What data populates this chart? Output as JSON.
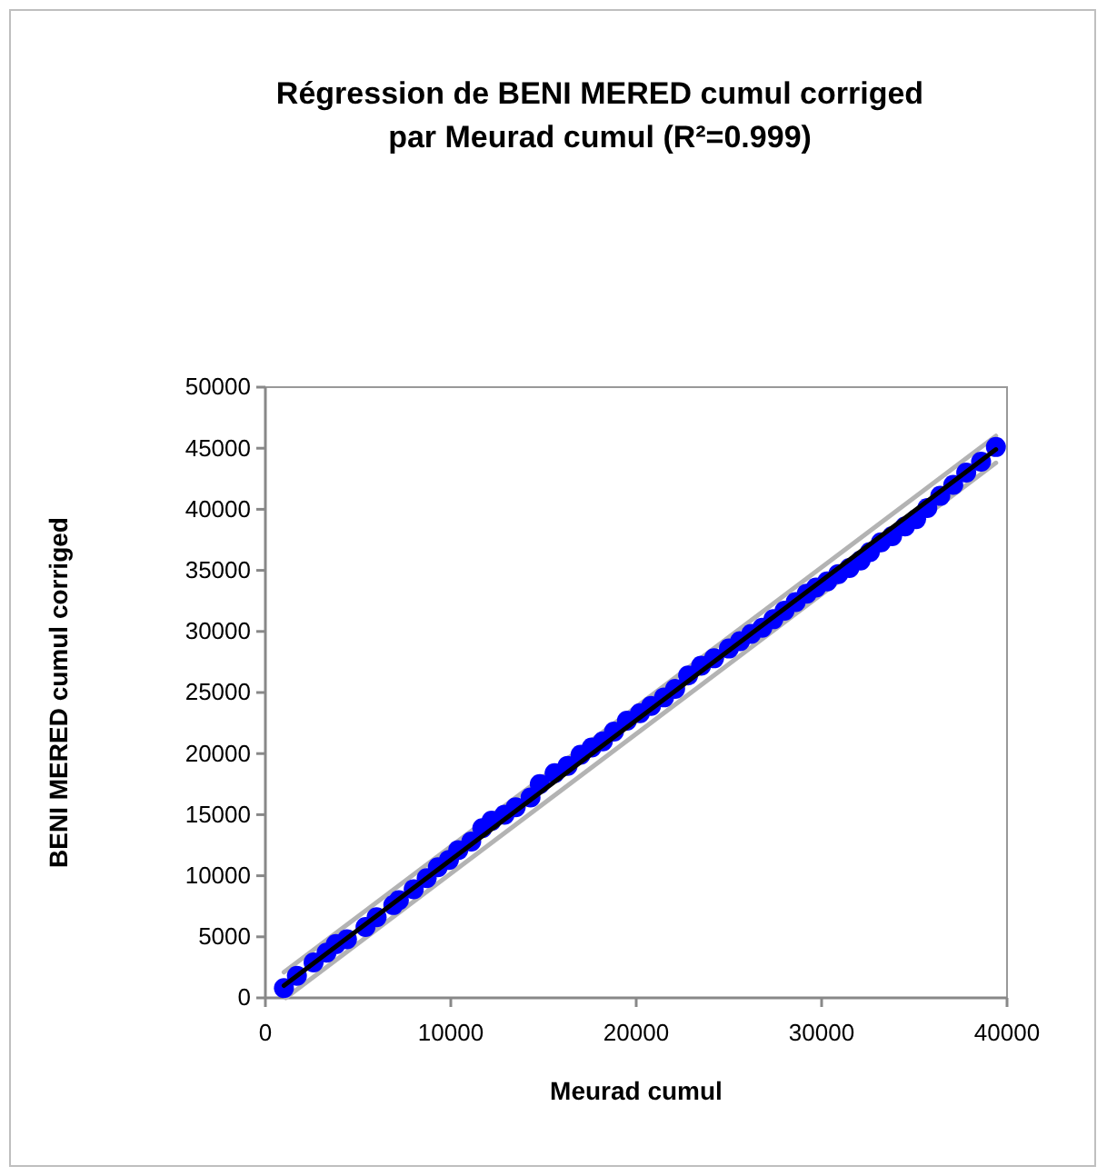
{
  "chart_data": {
    "type": "scatter",
    "title": "Régression de BENI MERED cumul corriged\npar Meurad cumul (R²=0.999)",
    "xlabel": "Meurad cumul",
    "ylabel": "BENI MERED cumul corriged",
    "xlim": [
      0,
      40000
    ],
    "ylim": [
      0,
      50000
    ],
    "xticks": [
      0,
      10000,
      20000,
      30000,
      40000
    ],
    "yticks": [
      0,
      5000,
      10000,
      15000,
      20000,
      25000,
      30000,
      35000,
      40000,
      45000,
      50000
    ],
    "grid": false,
    "series": [
      {
        "type": "line",
        "marker": "none",
        "color": "#b3b3b3",
        "x": [
          1000,
          39400
        ],
        "values": [
          2100,
          46000
        ]
      },
      {
        "type": "line",
        "marker": "none",
        "color": "#b3b3b3",
        "x": [
          1100,
          39400
        ],
        "values": [
          0,
          43800
        ]
      },
      {
        "marker": "circle",
        "color": "#0000ff",
        "x": [
          1000,
          1700,
          2600,
          3300,
          3800,
          4400,
          5400,
          6000,
          6900,
          7200,
          8000,
          8700,
          9300,
          9900,
          10400,
          11100,
          11700,
          12200,
          12900,
          13500,
          14300,
          14800,
          15600,
          16300,
          17000,
          17600,
          18200,
          18800,
          19500,
          20200,
          20800,
          21500,
          22100,
          22800,
          23500,
          24200,
          25000,
          25600,
          26200,
          26800,
          27400,
          28000,
          28600,
          29200,
          29700,
          30300,
          30900,
          31500,
          32100,
          32600,
          33200,
          33800,
          34500,
          35100,
          35700,
          36400,
          37100,
          37800,
          38600,
          39400
        ],
        "values": [
          800,
          1800,
          2900,
          3700,
          4400,
          4800,
          5800,
          6600,
          7600,
          8000,
          8900,
          9800,
          10700,
          11300,
          12100,
          12800,
          13900,
          14500,
          15000,
          15600,
          16400,
          17500,
          18400,
          19000,
          19900,
          20500,
          21000,
          21800,
          22700,
          23300,
          23900,
          24600,
          25300,
          26400,
          27200,
          27800,
          28600,
          29200,
          29800,
          30300,
          31000,
          31700,
          32400,
          33100,
          33600,
          34100,
          34700,
          35200,
          35800,
          36500,
          37300,
          37800,
          38600,
          39200,
          40100,
          41100,
          42000,
          43000,
          43900,
          45100
        ]
      },
      {
        "type": "line",
        "marker": "none",
        "color": "#000000",
        "x": [
          1000,
          39400
        ],
        "values": [
          1000,
          44900
        ]
      }
    ]
  }
}
